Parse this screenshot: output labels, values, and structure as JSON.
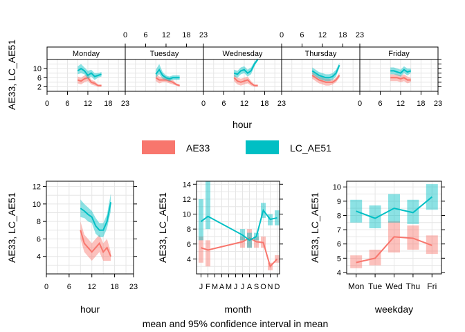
{
  "colors": {
    "ae33": "#F8766D",
    "lc_ae51": "#00BFC4",
    "grid": "#e6e6e6",
    "strip": "#ffffff"
  },
  "caption": "mean and 95% confidence interval in mean",
  "legend": [
    {
      "name": "AE33",
      "color": "#F8766D"
    },
    {
      "name": "LC_AE51",
      "color": "#00BFC4"
    }
  ],
  "chart_data": [
    {
      "id": "hour-by-weekday",
      "type": "line",
      "ylabel": "AE33, LC_AE51",
      "xlabel": "hour",
      "x_ticks": [
        0,
        6,
        12,
        18,
        23
      ],
      "y_ticks": [
        2,
        6,
        10
      ],
      "xlim": [
        0,
        23
      ],
      "ylim": [
        0,
        14
      ],
      "panels": [
        {
          "name": "Monday",
          "series": [
            {
              "name": "AE33",
              "x": [
                9,
                10,
                11,
                12,
                13,
                14,
                15,
                16
              ],
              "y": [
                5,
                4.5,
                5.5,
                6,
                4,
                3.5,
                2.5,
                2.5
              ],
              "lower": [
                3.5,
                3,
                4,
                4.5,
                3,
                2.5,
                2,
                2
              ],
              "upper": [
                6.5,
                6,
                7,
                7.5,
                5,
                4.5,
                3,
                3
              ]
            },
            {
              "name": "LC_AE51",
              "x": [
                9,
                10,
                11,
                12,
                13,
                14,
                15,
                16
              ],
              "y": [
                9,
                10,
                9,
                7,
                8,
                6.5,
                7,
                7.5
              ],
              "lower": [
                7.5,
                8,
                7.5,
                5.5,
                6.5,
                5,
                6,
                6.5
              ],
              "upper": [
                11,
                12,
                10.5,
                9,
                9.5,
                8,
                8,
                8.5
              ]
            }
          ]
        },
        {
          "name": "Tuesday",
          "series": [
            {
              "name": "AE33",
              "x": [
                9,
                10,
                11,
                12,
                13,
                14,
                15,
                16
              ],
              "y": [
                6,
                5,
                5,
                5,
                4.5,
                4,
                3,
                2.5
              ],
              "lower": [
                4.5,
                3.5,
                4,
                4,
                3.5,
                3,
                2.5,
                2
              ],
              "upper": [
                7.5,
                6.5,
                6,
                6,
                5.5,
                5,
                3.5,
                3
              ]
            },
            {
              "name": "LC_AE51",
              "x": [
                9,
                10,
                11,
                12,
                13,
                14,
                15,
                16
              ],
              "y": [
                7.5,
                9.5,
                7,
                6,
                5.5,
                6,
                6,
                6
              ],
              "lower": [
                6,
                7.5,
                5.5,
                5,
                4.5,
                5,
                5,
                5
              ],
              "upper": [
                9.5,
                12,
                8.5,
                7,
                6.5,
                7,
                7,
                7
              ]
            }
          ]
        },
        {
          "name": "Wednesday",
          "series": [
            {
              "name": "AE33",
              "x": [
                9,
                10,
                11,
                12,
                13,
                14,
                15,
                16
              ],
              "y": [
                6,
                4.5,
                4,
                4.5,
                5,
                3.5,
                2.5,
                2.5
              ],
              "lower": [
                4.5,
                3,
                2.5,
                3,
                3.5,
                2.5,
                2,
                2
              ],
              "upper": [
                7.5,
                6,
                5.5,
                6,
                6.5,
                4.5,
                3,
                3
              ]
            },
            {
              "name": "LC_AE51",
              "x": [
                9,
                10,
                11,
                12,
                13,
                14,
                15,
                16
              ],
              "y": [
                8,
                7.5,
                9,
                9.5,
                8,
                9,
                12,
                14
              ],
              "lower": [
                6.5,
                6,
                7.5,
                8,
                6.5,
                7.5,
                11,
                13.5
              ],
              "upper": [
                9.5,
                9,
                10.5,
                11,
                9.5,
                10.5,
                13,
                14.5
              ]
            }
          ]
        },
        {
          "name": "Thursday",
          "series": [
            {
              "name": "AE33",
              "x": [
                9,
                10,
                11,
                12,
                13,
                14,
                15,
                16,
                17
              ],
              "y": [
                7,
                6,
                5,
                4.5,
                4,
                4,
                4,
                5,
                7
              ],
              "lower": [
                5.5,
                4.5,
                3.5,
                3,
                2.5,
                2.5,
                3,
                4,
                6
              ],
              "upper": [
                8.5,
                7.5,
                6.5,
                6,
                5.5,
                5.5,
                5,
                6,
                8
              ]
            },
            {
              "name": "LC_AE51",
              "x": [
                9,
                10,
                11,
                12,
                13,
                14,
                15,
                16,
                17
              ],
              "y": [
                9,
                8,
                7,
                6.5,
                6,
                6,
                6.5,
                8,
                11.5
              ],
              "lower": [
                7.5,
                6.5,
                5.5,
                5,
                4.5,
                4.5,
                5,
                6.5,
                10.5
              ],
              "upper": [
                10.5,
                9.5,
                8.5,
                8,
                7.5,
                7.5,
                8,
                9.5,
                12.5
              ]
            }
          ]
        },
        {
          "name": "Friday",
          "series": [
            {
              "name": "AE33",
              "x": [
                9,
                10,
                11,
                12,
                13,
                14,
                15
              ],
              "y": [
                6,
                6,
                6,
                5.5,
                6,
                5,
                5
              ],
              "lower": [
                4.5,
                4.5,
                4.5,
                4,
                4.5,
                3.5,
                4
              ],
              "upper": [
                7.5,
                7.5,
                7.5,
                7,
                7.5,
                6.5,
                6
              ]
            },
            {
              "name": "LC_AE51",
              "x": [
                9,
                10,
                11,
                12,
                13,
                14,
                15
              ],
              "y": [
                9,
                9,
                8.5,
                8,
                9.5,
                8.5,
                9
              ],
              "lower": [
                7.5,
                7.5,
                7,
                6.5,
                8,
                7,
                8
              ],
              "upper": [
                10.5,
                10.5,
                10,
                9.5,
                11,
                10,
                10
              ]
            }
          ]
        }
      ]
    },
    {
      "id": "hour",
      "type": "line",
      "xlabel": "hour",
      "ylabel": "AE33, LC_AE51",
      "x_ticks": [
        0,
        6,
        12,
        18,
        23
      ],
      "y_ticks": [
        4,
        6,
        8,
        10,
        12
      ],
      "xlim": [
        0,
        23
      ],
      "ylim": [
        2,
        12.6
      ],
      "series": [
        {
          "name": "AE33",
          "x": [
            9,
            10,
            11,
            12,
            13,
            14,
            15,
            16,
            17
          ],
          "y": [
            7,
            5.5,
            5,
            4.5,
            5,
            5.5,
            4.5,
            5,
            4
          ],
          "lower": [
            6,
            4.5,
            4,
            3.5,
            4,
            4.5,
            3.5,
            3.5,
            3.5
          ],
          "upper": [
            8,
            6.5,
            6,
            5.5,
            6,
            6.5,
            5.5,
            6,
            4.5
          ]
        },
        {
          "name": "LC_AE51",
          "x": [
            9,
            10,
            11,
            12,
            13,
            14,
            15,
            16,
            17
          ],
          "y": [
            9.5,
            9.2,
            8.8,
            8.5,
            7.5,
            7,
            7,
            8,
            10.2
          ],
          "lower": [
            8.5,
            8.4,
            8,
            7.8,
            6.6,
            6.2,
            6.2,
            7.2,
            9.2
          ],
          "upper": [
            10.5,
            10,
            9.6,
            9.2,
            8.4,
            7.8,
            7.8,
            8.8,
            11.2
          ]
        }
      ]
    },
    {
      "id": "month",
      "type": "line",
      "xlabel": "month",
      "ylabel": "AE33, LC_AE51",
      "categories": [
        "J",
        "F",
        "M",
        "A",
        "M",
        "J",
        "J",
        "A",
        "S",
        "O",
        "N",
        "D"
      ],
      "y_ticks": [
        4,
        6,
        8,
        10,
        12,
        14
      ],
      "ylim": [
        2,
        14.4
      ],
      "series": [
        {
          "name": "AE33",
          "x": [
            1,
            2,
            7,
            8,
            9,
            10,
            11,
            12
          ],
          "y": [
            5.5,
            5.2,
            6.3,
            6.8,
            6.3,
            6.2,
            3,
            4
          ],
          "lower": [
            3.5,
            3,
            5.5,
            5.5,
            5.5,
            5.5,
            2.5,
            3.5
          ],
          "upper": [
            7,
            6.5,
            7,
            8,
            7,
            7,
            3.5,
            4.5
          ]
        },
        {
          "name": "LC_AE51",
          "x": [
            1,
            2,
            7,
            8,
            9,
            10,
            11,
            12
          ],
          "y": [
            9,
            9.7,
            7.2,
            6.5,
            7,
            10.5,
            9.3,
            9.5
          ],
          "lower": [
            6.5,
            8,
            6.5,
            5.5,
            6.5,
            9.5,
            8.5,
            8.5
          ],
          "upper": [
            12,
            14.4,
            8,
            7.5,
            7.5,
            11.5,
            10,
            10.5
          ]
        }
      ]
    },
    {
      "id": "weekday",
      "type": "line",
      "xlabel": "weekday",
      "ylabel": "AE33, LC_AE51",
      "categories": [
        "Mon",
        "Tue",
        "Wed",
        "Thu",
        "Fri"
      ],
      "y_ticks": [
        4,
        5,
        6,
        7,
        8,
        9,
        10
      ],
      "ylim": [
        3.9,
        10.4
      ],
      "series": [
        {
          "name": "AE33",
          "x": [
            1,
            2,
            3,
            4,
            5
          ],
          "y": [
            4.7,
            5,
            6.5,
            6.4,
            5.9
          ],
          "lower": [
            4.3,
            4.5,
            5.4,
            5.6,
            5.3
          ],
          "upper": [
            5.2,
            5.6,
            7.6,
            7.3,
            6.6
          ]
        },
        {
          "name": "LC_AE51",
          "x": [
            1,
            2,
            3,
            4,
            5
          ],
          "y": [
            8.3,
            7.8,
            8.5,
            8.2,
            9.3
          ],
          "lower": [
            7.5,
            7.1,
            7.5,
            7.4,
            8.4
          ],
          "upper": [
            9.1,
            8.7,
            9.5,
            9.1,
            10.2
          ]
        }
      ]
    }
  ]
}
